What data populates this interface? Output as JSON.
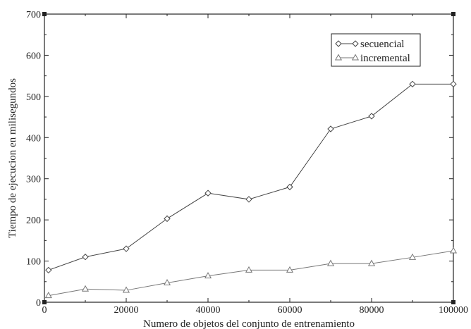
{
  "chart_data": {
    "type": "line",
    "title": "",
    "xlabel": "Numero de objetos del conjunto de entrenamiento",
    "ylabel": "Tiempo de ejecucion en milisegundos",
    "xlim": [
      0,
      100000
    ],
    "ylim": [
      0,
      700
    ],
    "xticks": [
      0,
      20000,
      40000,
      60000,
      80000,
      100000
    ],
    "xtick_labels": [
      "0",
      "20000",
      "40000",
      "60000",
      "80000",
      "100000"
    ],
    "yticks": [
      0,
      100,
      200,
      300,
      400,
      500,
      600,
      700
    ],
    "ytick_labels": [
      "0",
      "100",
      "200",
      "300",
      "400",
      "500",
      "600",
      "700"
    ],
    "grid": false,
    "legend_position": "top-right",
    "series": [
      {
        "name": "secuencial",
        "marker": "diamond",
        "color": "#444444",
        "x": [
          1000,
          10000,
          20000,
          30000,
          40000,
          50000,
          60000,
          70000,
          80000,
          90000,
          100000
        ],
        "y": [
          78,
          110,
          130,
          203,
          265,
          250,
          280,
          421,
          452,
          530,
          530
        ]
      },
      {
        "name": "incremental",
        "marker": "triangle",
        "color": "#777777",
        "x": [
          1000,
          10000,
          20000,
          30000,
          40000,
          50000,
          60000,
          70000,
          80000,
          90000,
          100000
        ],
        "y": [
          16,
          32,
          29,
          47,
          64,
          78,
          78,
          94,
          94,
          109,
          125
        ]
      }
    ]
  }
}
